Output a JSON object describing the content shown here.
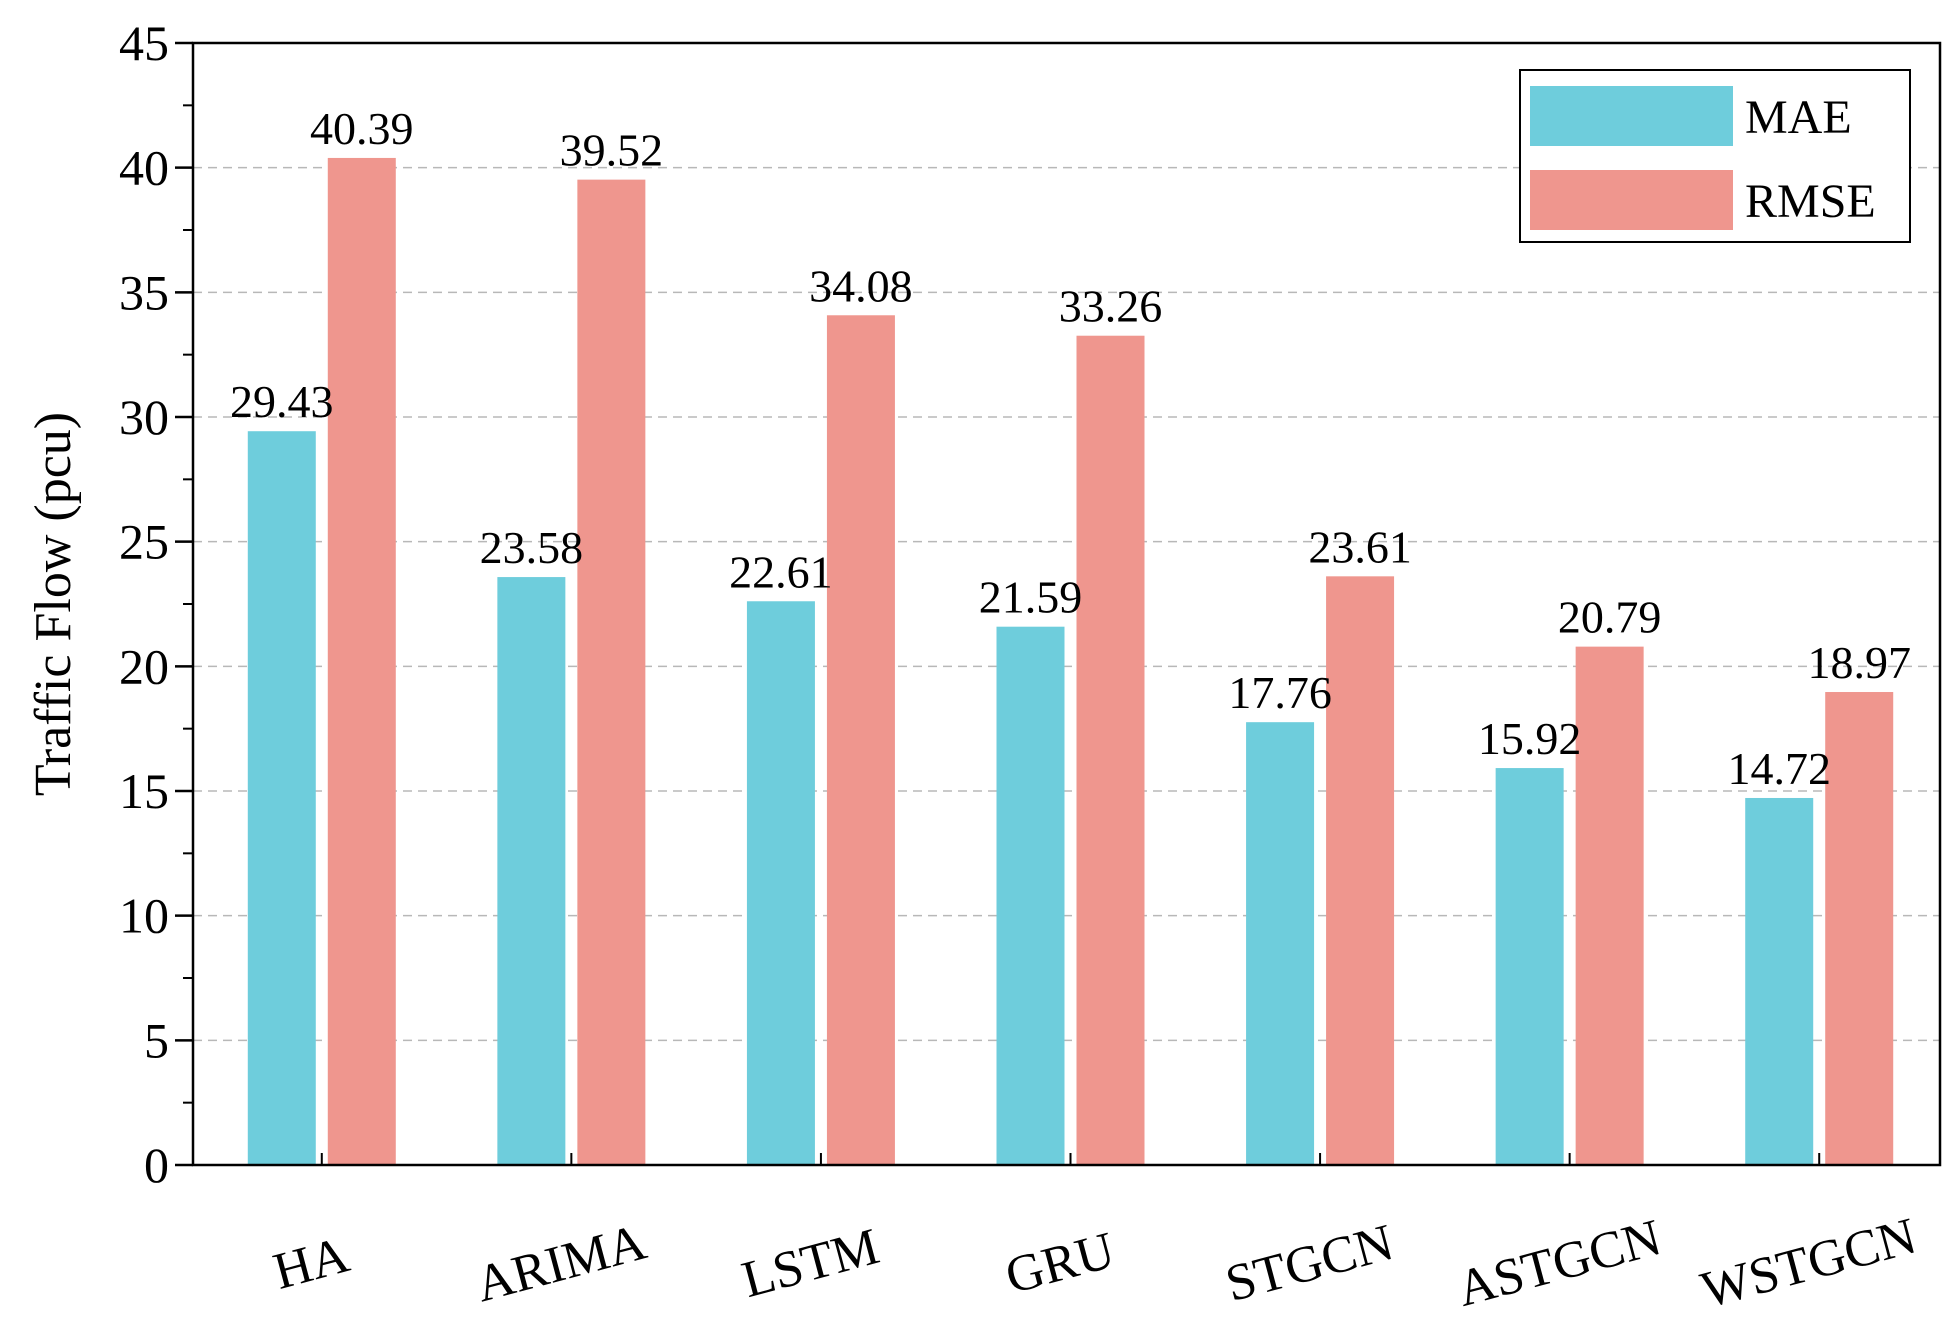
{
  "chart_data": {
    "type": "bar",
    "title": "",
    "xlabel": "",
    "ylabel": "Traffic Flow (pcu)",
    "ylim": [
      0,
      45
    ],
    "yticks": [
      0,
      5,
      10,
      15,
      20,
      25,
      30,
      35,
      40,
      45
    ],
    "grid": true,
    "legend_position": "top-right",
    "categories": [
      "HA",
      "ARIMA",
      "LSTM",
      "GRU",
      "STGCN",
      "ASTGCN",
      "WSTGCN"
    ],
    "series": [
      {
        "name": "MAE",
        "color": "#6ecddc",
        "values": [
          29.43,
          23.58,
          22.61,
          21.59,
          17.76,
          15.92,
          14.72
        ]
      },
      {
        "name": "RMSE",
        "color": "#ef968e",
        "values": [
          40.39,
          39.52,
          34.08,
          33.26,
          23.61,
          20.79,
          18.97
        ]
      }
    ]
  }
}
